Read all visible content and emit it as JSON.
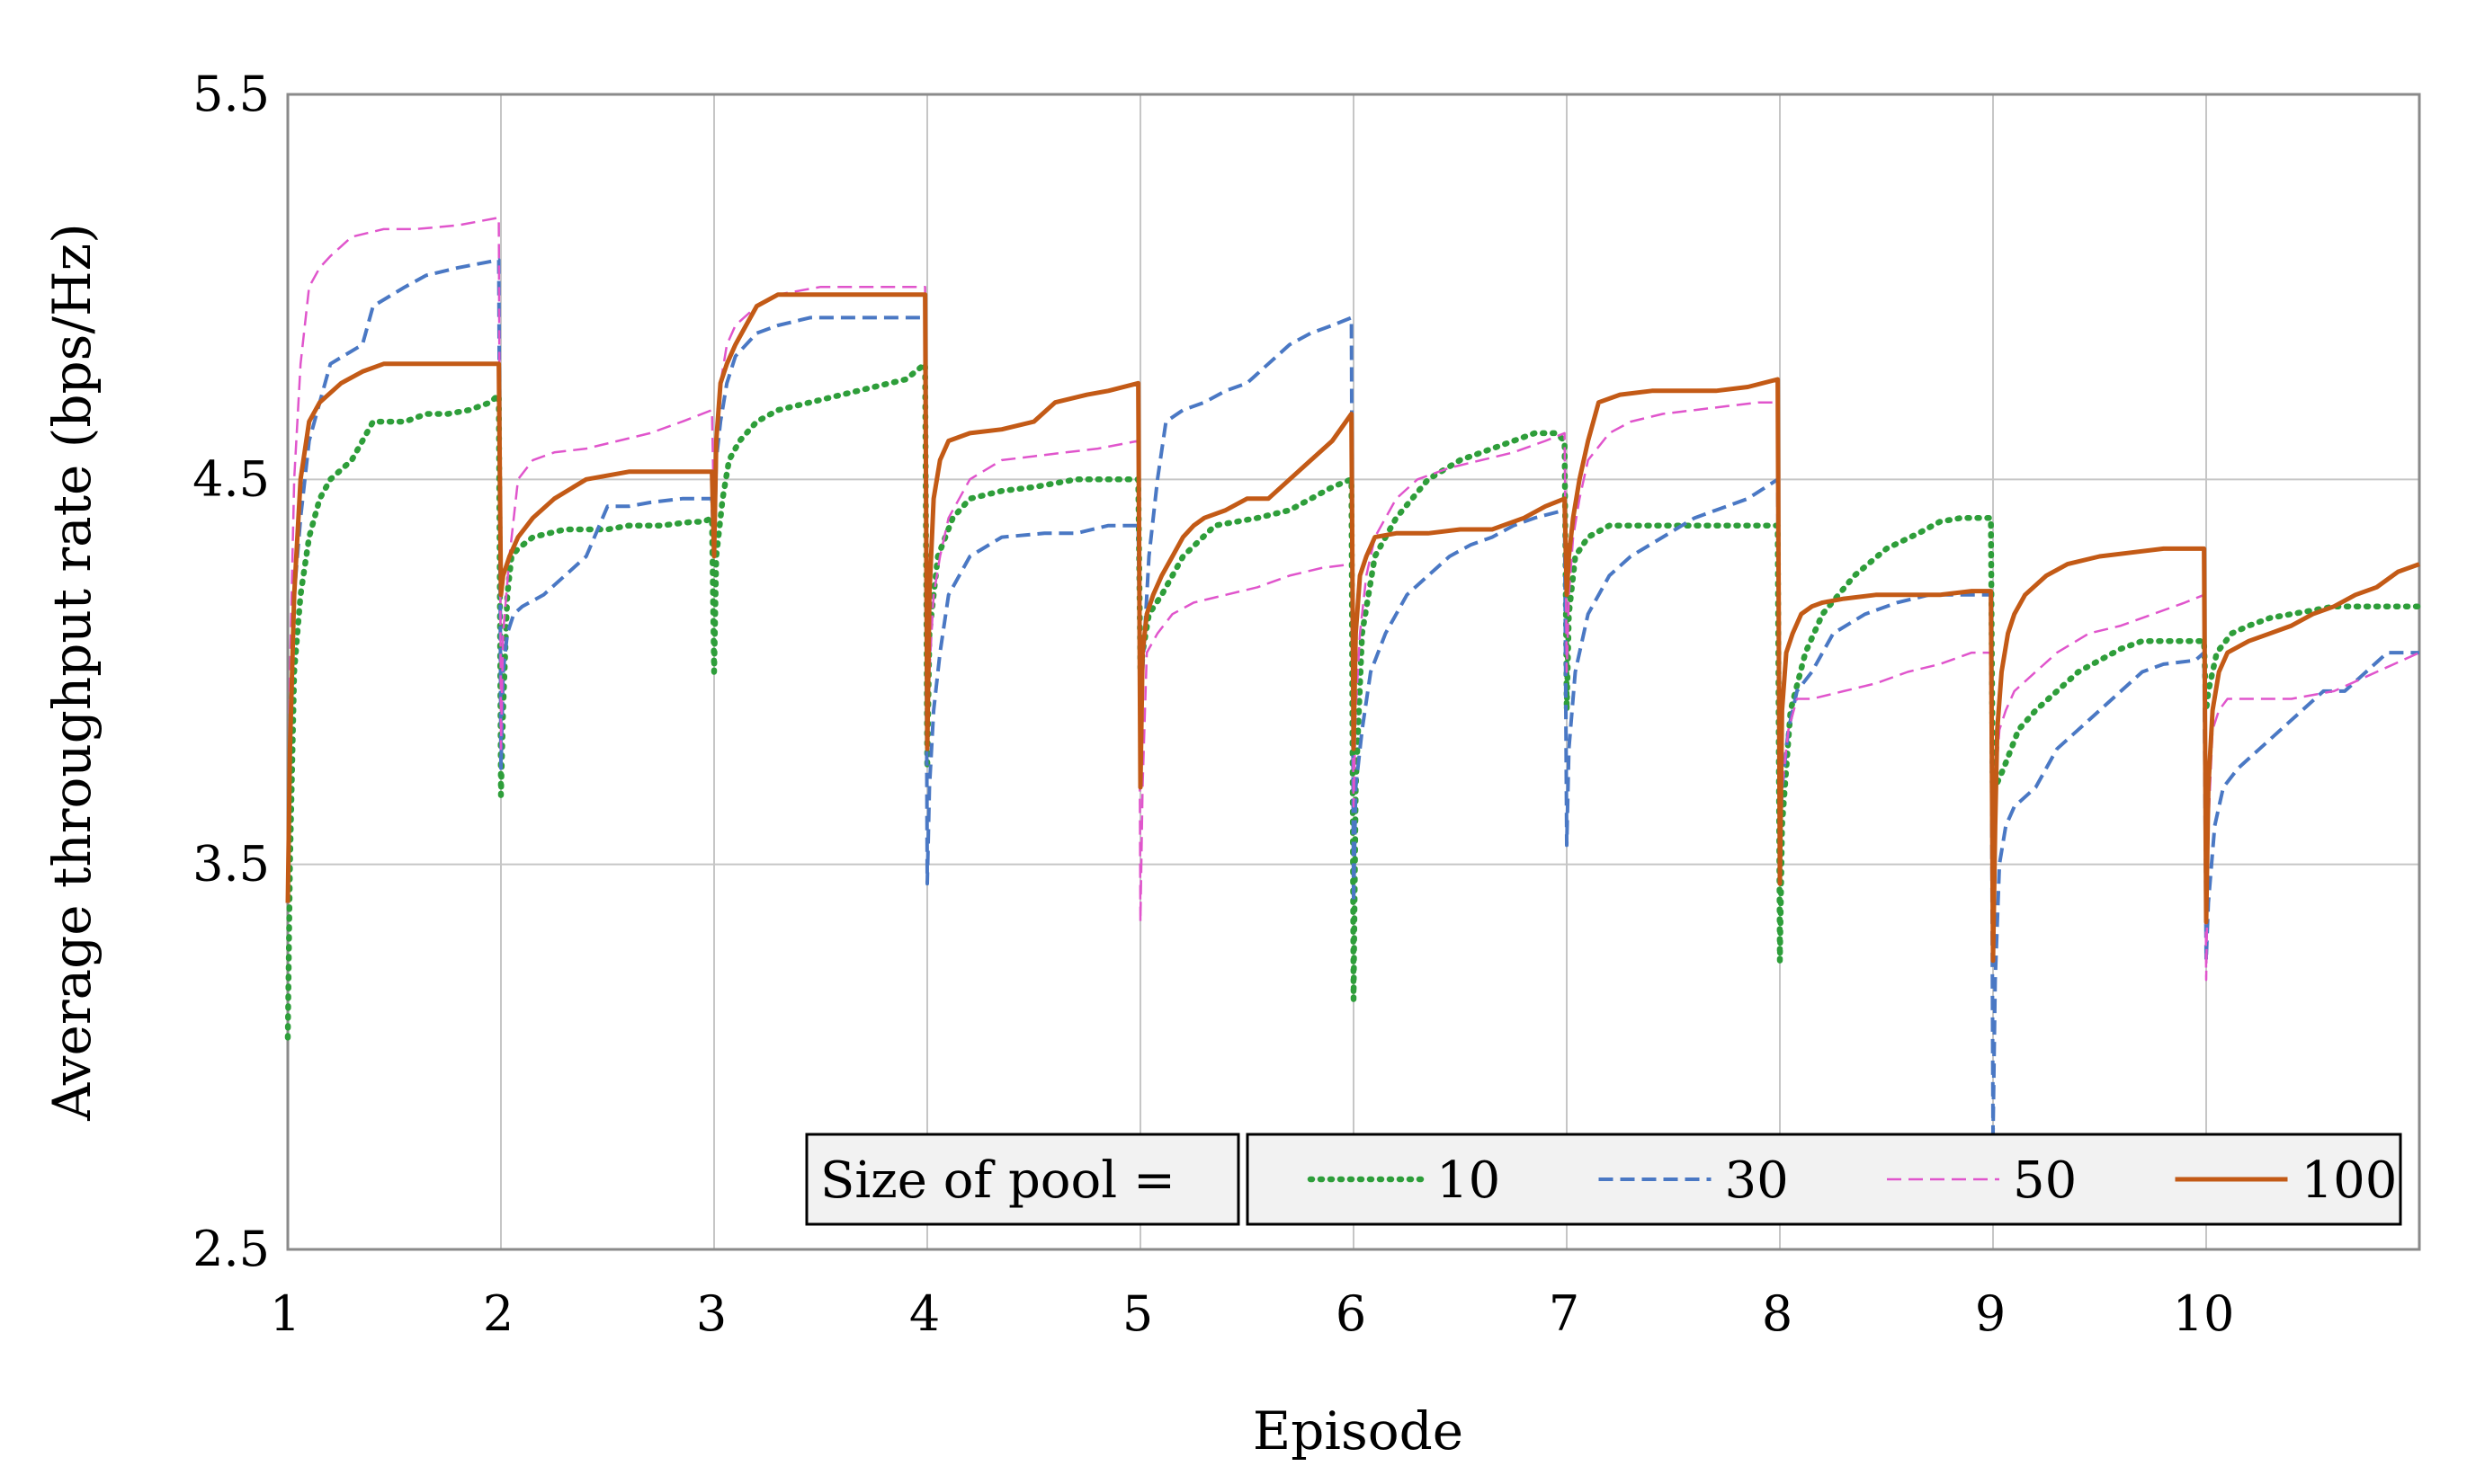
{
  "chart_data": {
    "type": "line",
    "title": "",
    "xlabel": "Episode",
    "ylabel": "Average throughput rate (bps/Hz)",
    "xlim": [
      1,
      11
    ],
    "ylim": [
      2.5,
      5.5
    ],
    "x_ticks": [
      "1",
      "2",
      "3",
      "4",
      "5",
      "6",
      "7",
      "8",
      "9",
      "10"
    ],
    "y_ticks": [
      "2.5",
      "3.5",
      "4.5",
      "5.5"
    ],
    "grid": true,
    "legend": {
      "label": "Size of pool =",
      "position": "bottom-right"
    },
    "series": [
      {
        "name": "10",
        "color": "#2e9e3a",
        "style": "dotted",
        "x": [
          1.0,
          1.01,
          1.03,
          1.06,
          1.1,
          1.15,
          1.2,
          1.3,
          1.35,
          1.4,
          1.55,
          1.65,
          1.75,
          1.85,
          1.95,
          1.99,
          2.0,
          2.01,
          2.03,
          2.05,
          2.08,
          2.15,
          2.3,
          2.5,
          2.6,
          2.75,
          2.9,
          2.95,
          2.99,
          3.0,
          3.01,
          3.04,
          3.07,
          3.12,
          3.2,
          3.3,
          3.45,
          3.6,
          3.75,
          3.9,
          3.99,
          4.0,
          4.01,
          4.05,
          4.12,
          4.2,
          4.35,
          4.5,
          4.7,
          4.8,
          4.95,
          4.99,
          5.0,
          5.01,
          5.04,
          5.1,
          5.2,
          5.35,
          5.55,
          5.7,
          5.8,
          5.9,
          5.99,
          6.0,
          6.01,
          6.04,
          6.1,
          6.2,
          6.35,
          6.5,
          6.65,
          6.75,
          6.85,
          6.95,
          6.99,
          7.0,
          7.01,
          7.04,
          7.1,
          7.2,
          7.3,
          7.5,
          7.6,
          7.7,
          7.8,
          7.95,
          7.99,
          8.0,
          8.01,
          8.05,
          8.12,
          8.2,
          8.35,
          8.5,
          8.65,
          8.75,
          8.85,
          8.95,
          8.99,
          9.0,
          9.01,
          9.05,
          9.12,
          9.2,
          9.3,
          9.4,
          9.5,
          9.6,
          9.7,
          9.8,
          9.95,
          9.99,
          10.0,
          10.01,
          10.05,
          10.12,
          10.2,
          10.3,
          10.4,
          10.5,
          10.6,
          10.7,
          10.85,
          11.0
        ],
        "values": [
          3.05,
          3.5,
          4.0,
          4.2,
          4.35,
          4.45,
          4.5,
          4.55,
          4.6,
          4.65,
          4.65,
          4.67,
          4.67,
          4.68,
          4.7,
          4.72,
          3.68,
          3.9,
          4.2,
          4.3,
          4.32,
          4.35,
          4.37,
          4.37,
          4.38,
          4.38,
          4.39,
          4.39,
          4.4,
          4.0,
          4.3,
          4.45,
          4.55,
          4.6,
          4.65,
          4.68,
          4.7,
          4.72,
          4.74,
          4.76,
          4.8,
          3.75,
          4.1,
          4.3,
          4.4,
          4.45,
          4.47,
          4.48,
          4.5,
          4.5,
          4.5,
          4.5,
          4.0,
          4.05,
          4.15,
          4.2,
          4.3,
          4.38,
          4.4,
          4.42,
          4.45,
          4.48,
          4.5,
          3.15,
          3.7,
          4.1,
          4.3,
          4.4,
          4.5,
          4.55,
          4.58,
          4.6,
          4.62,
          4.62,
          4.6,
          3.9,
          4.15,
          4.3,
          4.35,
          4.38,
          4.38,
          4.38,
          4.38,
          4.38,
          4.38,
          4.38,
          4.38,
          3.25,
          3.6,
          3.9,
          4.05,
          4.15,
          4.25,
          4.32,
          4.36,
          4.39,
          4.4,
          4.4,
          4.4,
          3.6,
          3.7,
          3.75,
          3.85,
          3.9,
          3.95,
          4.0,
          4.03,
          4.06,
          4.08,
          4.08,
          4.08,
          4.08,
          3.9,
          3.95,
          4.05,
          4.1,
          4.12,
          4.14,
          4.15,
          4.16,
          4.17,
          4.17,
          4.17,
          4.17
        ]
      },
      {
        "name": "30",
        "color": "#4a78c4",
        "style": "dashed",
        "x": [
          1.0,
          1.01,
          1.03,
          1.06,
          1.1,
          1.15,
          1.2,
          1.35,
          1.4,
          1.55,
          1.65,
          1.8,
          1.99,
          2.0,
          2.01,
          2.03,
          2.06,
          2.1,
          2.2,
          2.3,
          2.4,
          2.5,
          2.6,
          2.7,
          2.85,
          2.99,
          3.0,
          3.01,
          3.03,
          3.06,
          3.1,
          3.2,
          3.3,
          3.45,
          3.6,
          3.75,
          3.9,
          3.99,
          4.0,
          4.01,
          4.03,
          4.06,
          4.1,
          4.2,
          4.35,
          4.55,
          4.7,
          4.85,
          4.99,
          5.0,
          5.01,
          5.04,
          5.08,
          5.12,
          5.2,
          5.3,
          5.4,
          5.5,
          5.6,
          5.7,
          5.8,
          5.9,
          5.99,
          6.0,
          6.01,
          6.04,
          6.08,
          6.15,
          6.25,
          6.35,
          6.45,
          6.55,
          6.65,
          6.75,
          6.85,
          6.99,
          7.0,
          7.01,
          7.04,
          7.1,
          7.2,
          7.3,
          7.45,
          7.6,
          7.7,
          7.85,
          7.99,
          8.0,
          8.01,
          8.04,
          8.08,
          8.15,
          8.25,
          8.4,
          8.55,
          8.7,
          8.85,
          8.99,
          9.0,
          9.01,
          9.03,
          9.06,
          9.1,
          9.2,
          9.3,
          9.4,
          9.5,
          9.6,
          9.7,
          9.8,
          9.95,
          9.99,
          10.0,
          10.01,
          10.04,
          10.08,
          10.15,
          10.25,
          10.35,
          10.45,
          10.55,
          10.65,
          10.75,
          10.85,
          11.0
        ],
        "values": [
          3.4,
          3.8,
          4.2,
          4.4,
          4.6,
          4.7,
          4.8,
          4.85,
          4.95,
          5.0,
          5.03,
          5.05,
          5.07,
          3.75,
          4.0,
          4.1,
          4.15,
          4.17,
          4.2,
          4.25,
          4.3,
          4.43,
          4.43,
          4.44,
          4.45,
          4.45,
          4.3,
          4.55,
          4.65,
          4.75,
          4.82,
          4.88,
          4.9,
          4.92,
          4.92,
          4.92,
          4.92,
          4.92,
          3.45,
          3.7,
          3.9,
          4.05,
          4.2,
          4.3,
          4.35,
          4.36,
          4.36,
          4.38,
          4.38,
          3.9,
          4.0,
          4.3,
          4.5,
          4.65,
          4.68,
          4.7,
          4.73,
          4.75,
          4.8,
          4.85,
          4.88,
          4.9,
          4.92,
          3.4,
          3.7,
          3.85,
          4.0,
          4.1,
          4.2,
          4.25,
          4.3,
          4.33,
          4.35,
          4.38,
          4.4,
          4.42,
          3.55,
          3.8,
          4.0,
          4.15,
          4.25,
          4.3,
          4.35,
          4.4,
          4.42,
          4.45,
          4.5,
          3.55,
          3.7,
          3.85,
          3.95,
          4.0,
          4.1,
          4.15,
          4.18,
          4.2,
          4.2,
          4.2,
          2.8,
          3.2,
          3.5,
          3.6,
          3.65,
          3.7,
          3.8,
          3.85,
          3.9,
          3.95,
          4.0,
          4.02,
          4.03,
          4.05,
          3.25,
          3.4,
          3.6,
          3.7,
          3.75,
          3.8,
          3.85,
          3.9,
          3.95,
          3.95,
          4.0,
          4.05,
          4.05
        ]
      },
      {
        "name": "50",
        "color": "#e055cc",
        "style": "dashed-thin",
        "x": [
          1.0,
          1.01,
          1.03,
          1.06,
          1.1,
          1.15,
          1.2,
          1.3,
          1.45,
          1.6,
          1.8,
          1.99,
          2.0,
          2.01,
          2.04,
          2.08,
          2.15,
          2.25,
          2.4,
          2.55,
          2.7,
          2.85,
          2.99,
          3.0,
          3.01,
          3.03,
          3.06,
          3.1,
          3.2,
          3.3,
          3.5,
          3.7,
          3.85,
          3.99,
          4.0,
          4.01,
          4.03,
          4.06,
          4.1,
          4.2,
          4.35,
          4.5,
          4.65,
          4.8,
          4.99,
          5.0,
          5.01,
          5.03,
          5.08,
          5.15,
          5.25,
          5.4,
          5.55,
          5.7,
          5.85,
          5.99,
          6.0,
          6.01,
          6.03,
          6.06,
          6.1,
          6.2,
          6.3,
          6.45,
          6.6,
          6.75,
          6.9,
          6.99,
          7.0,
          7.01,
          7.03,
          7.06,
          7.1,
          7.2,
          7.3,
          7.45,
          7.6,
          7.75,
          7.9,
          7.99,
          8.0,
          8.01,
          8.04,
          8.08,
          8.15,
          8.3,
          8.45,
          8.6,
          8.75,
          8.9,
          8.99,
          9.0,
          9.01,
          9.03,
          9.06,
          9.1,
          9.2,
          9.3,
          9.45,
          9.6,
          9.75,
          9.9,
          9.99,
          10.0,
          10.01,
          10.03,
          10.06,
          10.1,
          10.2,
          10.4,
          10.6,
          10.8,
          11.0
        ],
        "values": [
          3.5,
          4.0,
          4.5,
          4.8,
          5.0,
          5.05,
          5.08,
          5.13,
          5.15,
          5.15,
          5.16,
          5.18,
          3.8,
          4.1,
          4.3,
          4.5,
          4.55,
          4.57,
          4.58,
          4.6,
          4.62,
          4.65,
          4.68,
          4.4,
          4.6,
          4.75,
          4.85,
          4.9,
          4.95,
          4.98,
          5.0,
          5.0,
          5.0,
          5.0,
          3.8,
          4.0,
          4.2,
          4.3,
          4.4,
          4.5,
          4.55,
          4.56,
          4.57,
          4.58,
          4.6,
          3.35,
          3.7,
          4.05,
          4.1,
          4.15,
          4.18,
          4.2,
          4.22,
          4.25,
          4.27,
          4.28,
          3.65,
          3.9,
          4.1,
          4.25,
          4.35,
          4.45,
          4.5,
          4.53,
          4.55,
          4.57,
          4.6,
          4.62,
          4.0,
          4.2,
          4.35,
          4.45,
          4.55,
          4.62,
          4.65,
          4.67,
          4.68,
          4.69,
          4.7,
          4.7,
          3.5,
          3.7,
          3.85,
          3.93,
          3.93,
          3.95,
          3.97,
          4.0,
          4.02,
          4.05,
          4.05,
          3.5,
          3.7,
          3.85,
          3.9,
          3.95,
          4.0,
          4.05,
          4.1,
          4.12,
          4.15,
          4.18,
          4.2,
          3.2,
          3.6,
          3.85,
          3.9,
          3.93,
          3.93,
          3.93,
          3.95,
          4.0,
          4.05
        ]
      },
      {
        "name": "100",
        "color": "#c35a16",
        "style": "solid",
        "x": [
          1.0,
          1.01,
          1.03,
          1.06,
          1.1,
          1.15,
          1.25,
          1.35,
          1.45,
          1.6,
          1.8,
          1.99,
          2.0,
          2.01,
          2.04,
          2.08,
          2.15,
          2.25,
          2.4,
          2.6,
          2.8,
          2.99,
          3.0,
          3.01,
          3.03,
          3.06,
          3.1,
          3.15,
          3.2,
          3.3,
          3.5,
          3.7,
          3.9,
          3.99,
          4.0,
          4.01,
          4.03,
          4.06,
          4.1,
          4.2,
          4.35,
          4.5,
          4.6,
          4.75,
          4.85,
          4.99,
          5.0,
          5.01,
          5.03,
          5.06,
          5.1,
          5.15,
          5.2,
          5.25,
          5.3,
          5.4,
          5.5,
          5.6,
          5.7,
          5.8,
          5.9,
          5.99,
          6.0,
          6.01,
          6.03,
          6.06,
          6.1,
          6.2,
          6.35,
          6.5,
          6.65,
          6.8,
          6.9,
          6.99,
          7.0,
          7.01,
          7.03,
          7.06,
          7.1,
          7.15,
          7.25,
          7.4,
          7.55,
          7.7,
          7.85,
          7.99,
          8.0,
          8.01,
          8.03,
          8.06,
          8.1,
          8.15,
          8.2,
          8.3,
          8.45,
          8.6,
          8.75,
          8.9,
          8.99,
          9.0,
          9.01,
          9.02,
          9.04,
          9.07,
          9.1,
          9.15,
          9.25,
          9.35,
          9.5,
          9.65,
          9.8,
          9.99,
          10.0,
          10.01,
          10.03,
          10.06,
          10.1,
          10.2,
          10.3,
          10.4,
          10.5,
          10.6,
          10.7,
          10.8,
          10.9,
          11.0
        ],
        "values": [
          3.4,
          3.8,
          4.2,
          4.5,
          4.65,
          4.7,
          4.75,
          4.78,
          4.8,
          4.8,
          4.8,
          4.8,
          4.2,
          4.25,
          4.3,
          4.35,
          4.4,
          4.45,
          4.5,
          4.52,
          4.52,
          4.52,
          4.3,
          4.6,
          4.75,
          4.8,
          4.85,
          4.9,
          4.95,
          4.98,
          4.98,
          4.98,
          4.98,
          4.98,
          3.8,
          4.2,
          4.45,
          4.55,
          4.6,
          4.62,
          4.63,
          4.65,
          4.7,
          4.72,
          4.73,
          4.75,
          3.7,
          4.05,
          4.15,
          4.2,
          4.25,
          4.3,
          4.35,
          4.38,
          4.4,
          4.42,
          4.45,
          4.45,
          4.5,
          4.55,
          4.6,
          4.67,
          3.8,
          4.1,
          4.25,
          4.3,
          4.35,
          4.36,
          4.36,
          4.37,
          4.37,
          4.4,
          4.43,
          4.45,
          4.2,
          4.3,
          4.4,
          4.5,
          4.6,
          4.7,
          4.72,
          4.73,
          4.73,
          4.73,
          4.74,
          4.76,
          3.45,
          3.9,
          4.05,
          4.1,
          4.15,
          4.17,
          4.18,
          4.19,
          4.2,
          4.2,
          4.2,
          4.21,
          4.21,
          3.25,
          3.6,
          3.85,
          4.0,
          4.1,
          4.15,
          4.2,
          4.25,
          4.28,
          4.3,
          4.31,
          4.32,
          4.32,
          3.35,
          3.7,
          3.9,
          4.0,
          4.05,
          4.08,
          4.1,
          4.12,
          4.15,
          4.17,
          4.2,
          4.22,
          4.26,
          4.28
        ]
      }
    ]
  }
}
